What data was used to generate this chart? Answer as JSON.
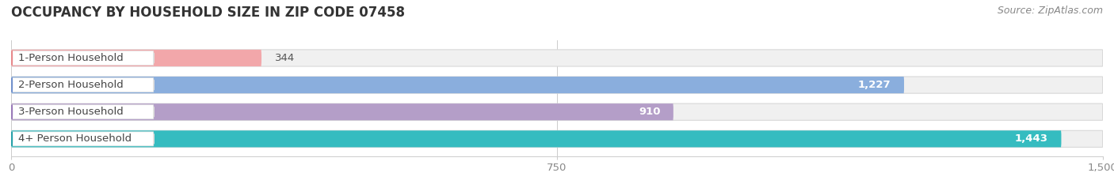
{
  "title": "OCCUPANCY BY HOUSEHOLD SIZE IN ZIP CODE 07458",
  "source": "Source: ZipAtlas.com",
  "categories": [
    "1-Person Household",
    "2-Person Household",
    "3-Person Household",
    "4+ Person Household"
  ],
  "values": [
    344,
    1227,
    910,
    1443
  ],
  "bar_colors": [
    "#f2a7aa",
    "#8aaedd",
    "#b49ec8",
    "#35bcc0"
  ],
  "label_dot_colors": [
    "#e8878a",
    "#7090cc",
    "#9878b8",
    "#25a0a8"
  ],
  "value_colors": [
    "#666666",
    "#ffffff",
    "#ffffff",
    "#ffffff"
  ],
  "value_outside": [
    true,
    false,
    false,
    false
  ],
  "xlim": [
    0,
    1500
  ],
  "xticks": [
    0,
    750,
    1500
  ],
  "background_color": "#ffffff",
  "bar_bg_color": "#f0f0f0",
  "bar_bg_edge_color": "#d8d8d8",
  "title_fontsize": 12,
  "source_fontsize": 9,
  "label_fontsize": 9.5,
  "value_fontsize": 9.5,
  "bar_height": 0.62,
  "figsize": [
    14.06,
    2.33
  ],
  "dpi": 100
}
